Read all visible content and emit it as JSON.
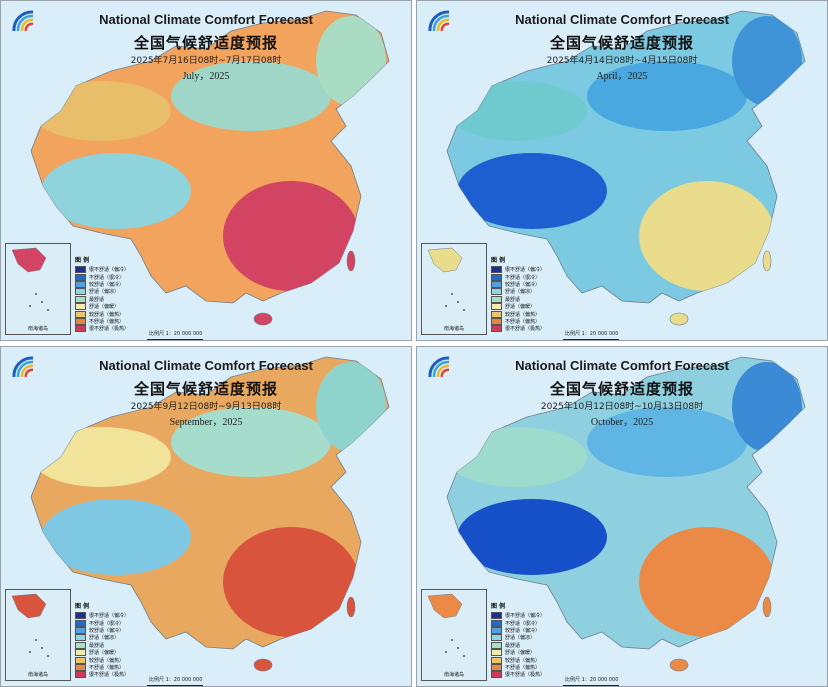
{
  "panels": [
    {
      "title_en": "National Climate Comfort Forecast",
      "title_cn": "全国气候舒适度预报",
      "date_range": "2025年7月16日08时~7月17日08时",
      "month_label": "July，2025",
      "palette": {
        "base": "#f2a35e",
        "west": "#e9be6a",
        "north": "#9fd6c8",
        "core": "#d24462",
        "ne": "#a9dcc3",
        "tibet": "#8fd3dc"
      }
    },
    {
      "title_en": "National Climate Comfort Forecast",
      "title_cn": "全国气候舒适度预报",
      "date_range": "2025年4月14日08时~4月15日08时",
      "month_label": "April，2025",
      "palette": {
        "base": "#7cc9e2",
        "west": "#6fcad0",
        "north": "#4aa8e0",
        "core": "#e9dc8c",
        "ne": "#3f94d8",
        "tibet": "#1d5fd0"
      }
    },
    {
      "title_en": "National Climate Comfort Forecast",
      "title_cn": "全国气候舒适度预报",
      "date_range": "2025年9月12日08时~9月13日08时",
      "month_label": "September，2025",
      "palette": {
        "base": "#e9a860",
        "west": "#f1e39a",
        "north": "#a6dccb",
        "core": "#d8543d",
        "ne": "#8fd4cc",
        "tibet": "#7fc8e4"
      }
    },
    {
      "title_en": "National Climate Comfort Forecast",
      "title_cn": "全国气候舒适度预报",
      "date_range": "2025年10月12日08时~10月13日08时",
      "month_label": "October，2025",
      "palette": {
        "base": "#8fd0e0",
        "west": "#9ddccc",
        "north": "#5fb6e4",
        "core": "#eb8a46",
        "ne": "#3b8ad6",
        "tibet": "#1650c8"
      }
    }
  ],
  "legend": {
    "title": "图 例",
    "items": [
      {
        "label": "很不舒适（偏冷）",
        "color": "#1a2f8f"
      },
      {
        "label": "不舒适（很冷）",
        "color": "#1f6ad1"
      },
      {
        "label": "较舒适（偏冷）",
        "color": "#4fa3e3"
      },
      {
        "label": "舒适（偏凉）",
        "color": "#8fd3e6"
      },
      {
        "label": "最舒适",
        "color": "#a8e0c2"
      },
      {
        "label": "舒适（偏暖）",
        "color": "#f3ebb0"
      },
      {
        "label": "较舒适（偏热）",
        "color": "#f1c46a"
      },
      {
        "label": "不舒适（偏热）",
        "color": "#e8883f"
      },
      {
        "label": "很不舒适（极热）",
        "color": "#cf3a5c"
      }
    ]
  },
  "scale_label": "比例尺 1：20 000 000",
  "inset_label": "南海诸岛"
}
